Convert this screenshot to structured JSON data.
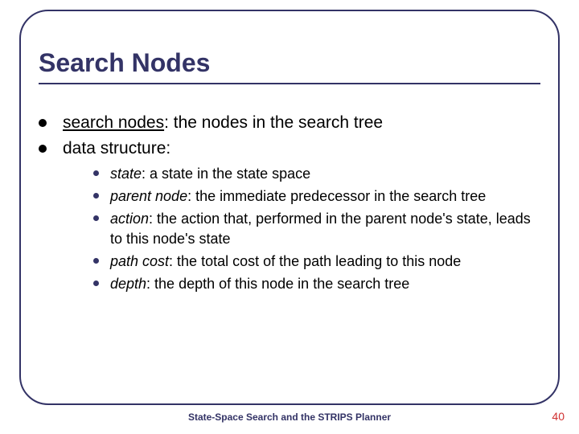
{
  "colors": {
    "accent": "#333366",
    "text": "#000000",
    "page_number": "#d03030",
    "background": "#ffffff"
  },
  "typography": {
    "title_fontsize": 32,
    "main_fontsize": 21,
    "sub_fontsize": 18,
    "footer_fontsize": 12,
    "pagenum_fontsize": 14,
    "font_family": "Arial"
  },
  "frame": {
    "border_radius": 36,
    "border_width": 2
  },
  "title": "Search Nodes",
  "main_items": [
    {
      "underlined": "search nodes",
      "rest": ": the nodes in the search tree"
    },
    {
      "underlined": "",
      "rest": "data structure:"
    }
  ],
  "sub_items": [
    {
      "term": "state",
      "rest": ": a state in the state space"
    },
    {
      "term": "parent node",
      "rest": ": the immediate predecessor in the search tree"
    },
    {
      "term": "action",
      "rest": ": the action that, performed in the parent node's state, leads to this node's state"
    },
    {
      "term": "path cost",
      "rest": ": the total cost of the path leading to this node"
    },
    {
      "term": "depth",
      "rest": ": the depth of this node in the search tree"
    }
  ],
  "footer": "State-Space Search and the STRIPS Planner",
  "page_number": "40"
}
